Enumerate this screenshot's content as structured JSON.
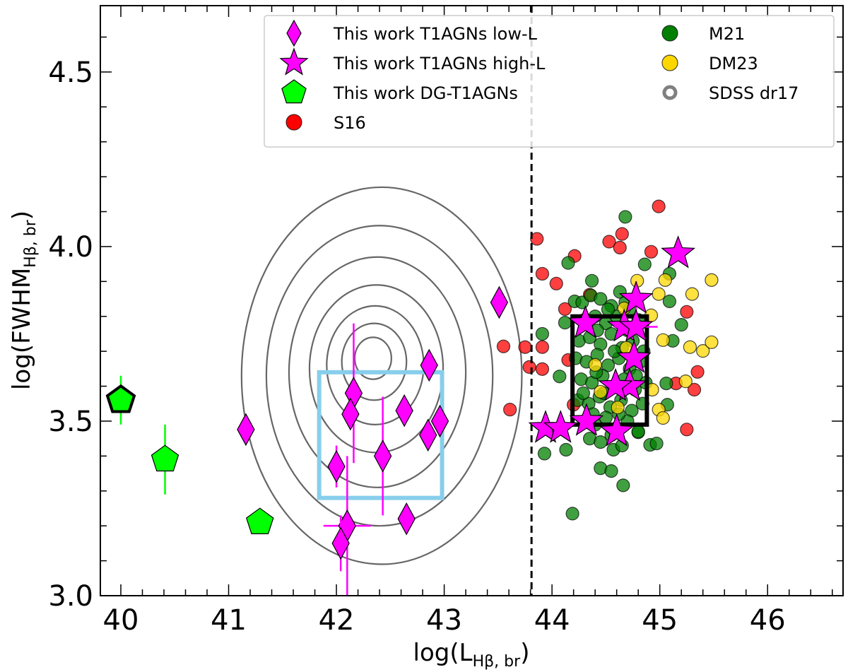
{
  "chart_data": {
    "type": "scatter",
    "xlabel": {
      "main": "log(L",
      "sub": "Hβ, br",
      "close": ")"
    },
    "ylabel": {
      "main": "log(FWHM",
      "sub": "Hβ, br",
      "close": ")"
    },
    "xlim": [
      39.81,
      46.7
    ],
    "ylim": [
      3.0,
      4.69
    ],
    "xticks": [
      40,
      41,
      42,
      43,
      44,
      45,
      46
    ],
    "xtick_labels": [
      "40",
      "41",
      "42",
      "43",
      "44",
      "45",
      "46"
    ],
    "yticks": [
      3.0,
      3.5,
      4.0,
      4.5
    ],
    "ytick_labels": [
      "3.0",
      "3.5",
      "4.0",
      "4.5"
    ],
    "x_minor_step": 0.2,
    "y_minor_step": 0.1,
    "grid": false,
    "legend_placement": "top-right",
    "vertical_line": {
      "x": 43.81,
      "style": "dashed",
      "color": "#000000"
    },
    "rectangles": [
      {
        "x0": 41.84,
        "x1": 42.98,
        "y0": 3.28,
        "y1": 3.64,
        "color": "#87CEEB"
      },
      {
        "x0": 44.19,
        "x1": 44.88,
        "y0": 3.49,
        "y1": 3.8,
        "color": "#000000"
      }
    ],
    "series": [
      {
        "name": "SDSS dr17",
        "kind": "contour",
        "color": "#808080",
        "levels": [
          {
            "cx": 42.42,
            "cy": 3.63,
            "rx": 1.3,
            "ry": 0.54
          },
          {
            "cx": 42.4,
            "cy": 3.63,
            "rx": 1.05,
            "ry": 0.43
          },
          {
            "cx": 42.38,
            "cy": 3.64,
            "rx": 0.82,
            "ry": 0.33
          },
          {
            "cx": 42.37,
            "cy": 3.65,
            "rx": 0.62,
            "ry": 0.24
          },
          {
            "cx": 42.36,
            "cy": 3.66,
            "rx": 0.45,
            "ry": 0.17
          },
          {
            "cx": 42.35,
            "cy": 3.67,
            "rx": 0.3,
            "ry": 0.11
          },
          {
            "cx": 42.34,
            "cy": 3.68,
            "rx": 0.17,
            "ry": 0.06
          }
        ]
      },
      {
        "name": "S16",
        "marker": "circle",
        "color": "#FF0000",
        "points": [
          [
            44.99,
            4.115
          ],
          [
            44.65,
            4.036
          ],
          [
            44.53,
            4.014
          ],
          [
            44.63,
            3.997
          ],
          [
            44.92,
            3.985
          ],
          [
            43.86,
            4.022
          ],
          [
            44.21,
            3.973
          ],
          [
            43.91,
            3.922
          ],
          [
            44.04,
            3.894
          ],
          [
            44.35,
            3.862
          ],
          [
            45.25,
            3.813
          ],
          [
            44.12,
            3.821
          ],
          [
            43.91,
            3.712
          ],
          [
            43.75,
            3.712
          ],
          [
            43.79,
            3.655
          ],
          [
            43.91,
            3.649
          ],
          [
            45.35,
            3.641
          ],
          [
            45.32,
            3.59
          ],
          [
            44.15,
            3.675
          ],
          [
            44.2,
            3.547
          ],
          [
            45.25,
            3.476
          ],
          [
            45.15,
            3.608
          ],
          [
            43.61,
            3.533
          ],
          [
            43.55,
            3.714
          ]
        ]
      },
      {
        "name": "M21",
        "marker": "circle",
        "color": "#008000",
        "points": [
          [
            44.68,
            4.085
          ],
          [
            44.15,
            3.953
          ],
          [
            44.86,
            3.949
          ],
          [
            45.09,
            3.922
          ],
          [
            44.37,
            3.902
          ],
          [
            45.09,
            3.843
          ],
          [
            45.2,
            3.776
          ],
          [
            43.91,
            3.75
          ],
          [
            45.12,
            3.73
          ],
          [
            44.07,
            3.628
          ],
          [
            45.06,
            3.608
          ],
          [
            45.07,
            3.547
          ],
          [
            43.93,
            3.407
          ],
          [
            44.13,
            3.418
          ],
          [
            44.57,
            3.418
          ],
          [
            44.91,
            3.432
          ],
          [
            44.97,
            3.436
          ],
          [
            44.8,
            3.468
          ],
          [
            44.45,
            3.365
          ],
          [
            44.55,
            3.357
          ],
          [
            44.66,
            3.316
          ],
          [
            44.19,
            3.235
          ],
          [
            44.21,
            3.843
          ],
          [
            44.12,
            3.782
          ],
          [
            44.28,
            3.84
          ],
          [
            44.36,
            3.86
          ],
          [
            44.45,
            3.85
          ],
          [
            44.55,
            3.83
          ],
          [
            44.63,
            3.87
          ],
          [
            44.72,
            3.82
          ],
          [
            44.3,
            3.79
          ],
          [
            44.4,
            3.8
          ],
          [
            44.5,
            3.78
          ],
          [
            44.6,
            3.8
          ],
          [
            44.7,
            3.76
          ],
          [
            44.8,
            3.79
          ],
          [
            44.25,
            3.73
          ],
          [
            44.35,
            3.74
          ],
          [
            44.45,
            3.72
          ],
          [
            44.55,
            3.75
          ],
          [
            44.65,
            3.71
          ],
          [
            44.75,
            3.73
          ],
          [
            44.85,
            3.7
          ],
          [
            44.22,
            3.68
          ],
          [
            44.32,
            3.67
          ],
          [
            44.42,
            3.69
          ],
          [
            44.52,
            3.66
          ],
          [
            44.62,
            3.68
          ],
          [
            44.72,
            3.65
          ],
          [
            44.82,
            3.67
          ],
          [
            44.27,
            3.62
          ],
          [
            44.37,
            3.61
          ],
          [
            44.47,
            3.63
          ],
          [
            44.57,
            3.6
          ],
          [
            44.67,
            3.62
          ],
          [
            44.77,
            3.59
          ],
          [
            44.87,
            3.61
          ],
          [
            44.24,
            3.56
          ],
          [
            44.34,
            3.55
          ],
          [
            44.44,
            3.57
          ],
          [
            44.54,
            3.54
          ],
          [
            44.64,
            3.56
          ],
          [
            44.74,
            3.53
          ],
          [
            44.84,
            3.55
          ],
          [
            44.3,
            3.5
          ],
          [
            44.4,
            3.49
          ],
          [
            44.5,
            3.51
          ],
          [
            44.6,
            3.48
          ],
          [
            44.7,
            3.5
          ],
          [
            44.8,
            3.47
          ],
          [
            44.35,
            3.45
          ],
          [
            44.45,
            3.44
          ],
          [
            44.55,
            3.46
          ],
          [
            44.65,
            3.43
          ],
          [
            44.42,
            3.76
          ],
          [
            44.58,
            3.7
          ],
          [
            44.48,
            3.58
          ],
          [
            44.38,
            3.52
          ],
          [
            44.62,
            3.52
          ],
          [
            44.52,
            3.82
          ],
          [
            44.29,
            3.58
          ],
          [
            44.78,
            3.63
          ],
          [
            44.68,
            3.84
          ],
          [
            44.41,
            3.64
          ]
        ]
      },
      {
        "name": "DM23",
        "marker": "circle",
        "color": "#FFD700",
        "points": [
          [
            44.79,
            3.902
          ],
          [
            45.05,
            3.904
          ],
          [
            45.48,
            3.904
          ],
          [
            45.3,
            3.864
          ],
          [
            44.99,
            3.864
          ],
          [
            44.92,
            3.803
          ],
          [
            45.03,
            3.732
          ],
          [
            45.28,
            3.712
          ],
          [
            45.4,
            3.701
          ],
          [
            45.48,
            3.726
          ],
          [
            45.24,
            3.614
          ],
          [
            44.93,
            3.59
          ],
          [
            44.99,
            3.533
          ],
          [
            45.03,
            3.509
          ],
          [
            44.4,
            3.661
          ],
          [
            44.45,
            3.584
          ],
          [
            44.61,
            3.539
          ],
          [
            44.69,
            3.71
          ],
          [
            44.67,
            3.823
          ]
        ]
      },
      {
        "name": "This work T1AGNs low-L",
        "marker": "diamond",
        "color": "#FF00FF",
        "points": [
          {
            "x": 41.16,
            "y": 3.476
          },
          {
            "x": 42.0,
            "y": 3.37,
            "yerr": 0.06
          },
          {
            "x": 42.16,
            "y": 3.58,
            "yerr": 0.2
          },
          {
            "x": 42.13,
            "y": 3.52
          },
          {
            "x": 42.1,
            "y": 3.2,
            "xerr": 0.22,
            "yerr": 0.2
          },
          {
            "x": 42.04,
            "y": 3.15,
            "yerr": 0.08
          },
          {
            "x": 42.43,
            "y": 3.4,
            "yerr": 0.17
          },
          {
            "x": 42.63,
            "y": 3.53
          },
          {
            "x": 42.86,
            "y": 3.66
          },
          {
            "x": 42.85,
            "y": 3.46
          },
          {
            "x": 42.96,
            "y": 3.5
          },
          {
            "x": 42.65,
            "y": 3.22
          },
          {
            "x": 43.51,
            "y": 3.84
          }
        ]
      },
      {
        "name": "This work T1AGNs high-L",
        "marker": "star",
        "color": "#FF00FF",
        "points": [
          {
            "x": 45.17,
            "y": 3.98
          },
          {
            "x": 44.78,
            "y": 3.85,
            "yerr": 0.05
          },
          {
            "x": 44.31,
            "y": 3.78
          },
          {
            "x": 44.67,
            "y": 3.77
          },
          {
            "x": 44.78,
            "y": 3.77,
            "xerr": 0.2
          },
          {
            "x": 44.76,
            "y": 3.68
          },
          {
            "x": 44.72,
            "y": 3.6
          },
          {
            "x": 44.59,
            "y": 3.6
          },
          {
            "x": 43.94,
            "y": 3.48
          },
          {
            "x": 44.08,
            "y": 3.48
          },
          {
            "x": 44.32,
            "y": 3.5
          },
          {
            "x": 44.6,
            "y": 3.47
          }
        ]
      },
      {
        "name": "This work DG-T1AGNs",
        "marker": "pentagon",
        "color": "#00FF00",
        "points": [
          {
            "x": 40.0,
            "y": 3.56,
            "yerr": 0.07,
            "bold_edge": true
          },
          {
            "x": 40.41,
            "y": 3.39,
            "yerr": 0.1
          },
          {
            "x": 41.29,
            "y": 3.21
          }
        ]
      }
    ],
    "legend": {
      "col1": [
        {
          "label": "This work T1AGNs low-L",
          "marker": "diamond",
          "color": "#FF00FF"
        },
        {
          "label": "This work T1AGNs high-L",
          "marker": "star",
          "color": "#FF00FF"
        },
        {
          "label": "This work DG-T1AGNs",
          "marker": "pentagon",
          "color": "#00FF00"
        },
        {
          "label": "S16",
          "marker": "circle",
          "color": "#FF0000"
        }
      ],
      "col2": [
        {
          "label": "M21",
          "marker": "circle",
          "color": "#008000"
        },
        {
          "label": "DM23",
          "marker": "circle",
          "color": "#FFD700"
        },
        {
          "label": "SDSS dr17",
          "marker": "ring",
          "color": "#808080"
        }
      ]
    }
  }
}
